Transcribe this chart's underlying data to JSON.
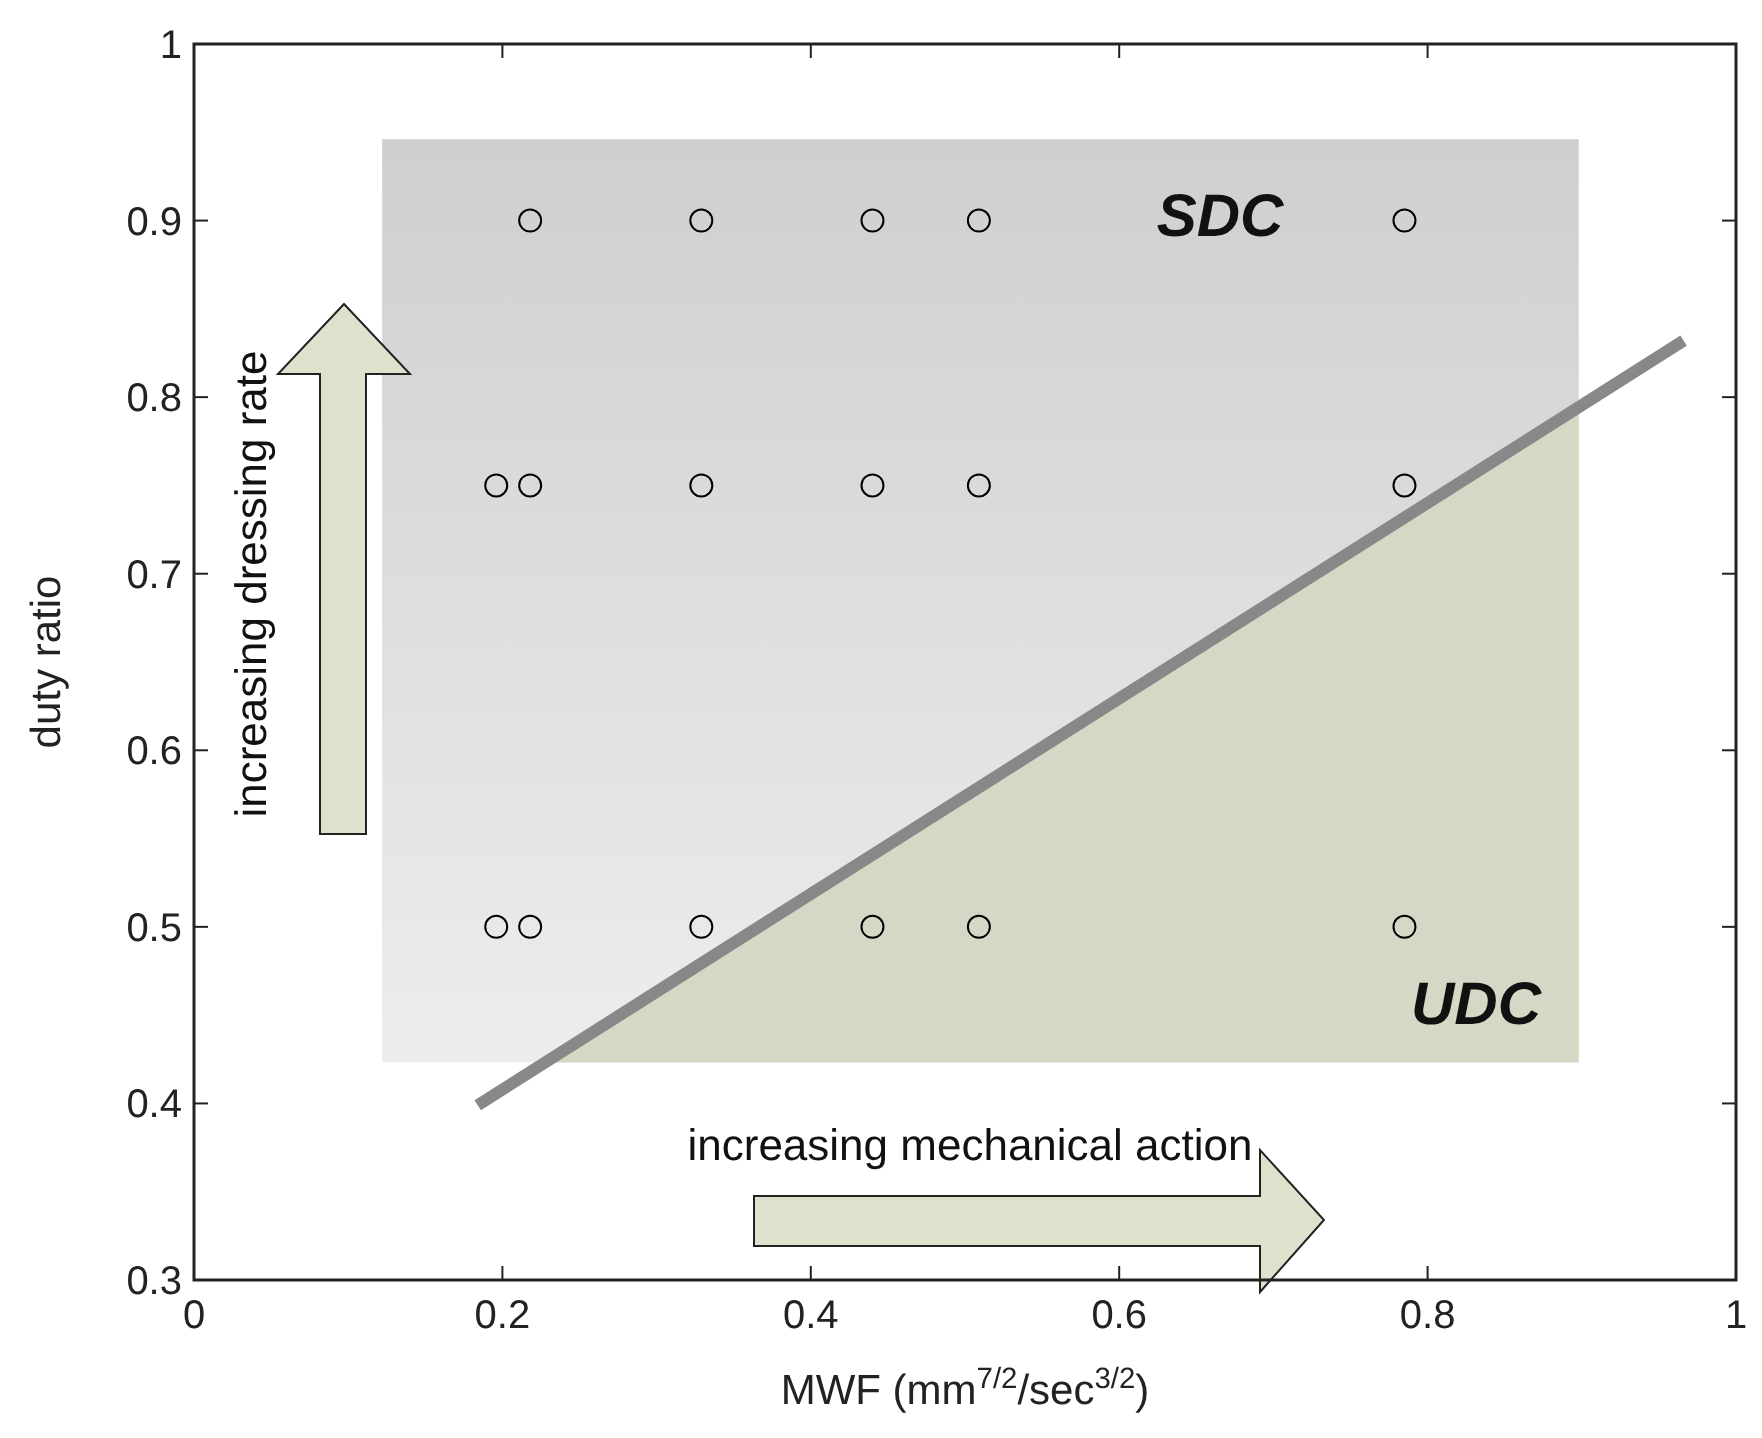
{
  "chart_data": {
    "type": "scatter",
    "xlabel": "MWF (mm$^{7/2}$/sec$^{3/2}$)",
    "ylabel": "duty ratio",
    "xlim": [
      0,
      1
    ],
    "ylim": [
      0.3,
      1
    ],
    "xticks": [
      0,
      0.2,
      0.4,
      0.6,
      0.8,
      1
    ],
    "yticks": [
      0.3,
      0.4,
      0.5,
      0.6,
      0.7,
      0.8,
      0.9,
      1
    ],
    "grid": false,
    "marker": "circle",
    "annotations": [
      "SDC",
      "UDC",
      "increasing dressing rate",
      "increasing mechanical action"
    ],
    "series": [
      {
        "color": "#000000",
        "x": [
          0.218,
          0.329,
          0.44,
          0.509,
          0.785,
          0.196,
          0.218,
          0.329,
          0.44,
          0.509,
          0.785,
          0.196,
          0.218,
          0.329,
          0.44,
          0.509,
          0.785
        ],
        "values": [
          0.9,
          0.9,
          0.9,
          0.9,
          0.9,
          0.75,
          0.75,
          0.75,
          0.75,
          0.75,
          0.75,
          0.5,
          0.5,
          0.5,
          0.5,
          0.5,
          0.5
        ]
      },
      {
        "type": "line",
        "color": "#888888",
        "marker": "none",
        "x": [
          0.184,
          0.966
        ],
        "values": [
          0.399,
          0.832
        ]
      }
    ]
  }
}
